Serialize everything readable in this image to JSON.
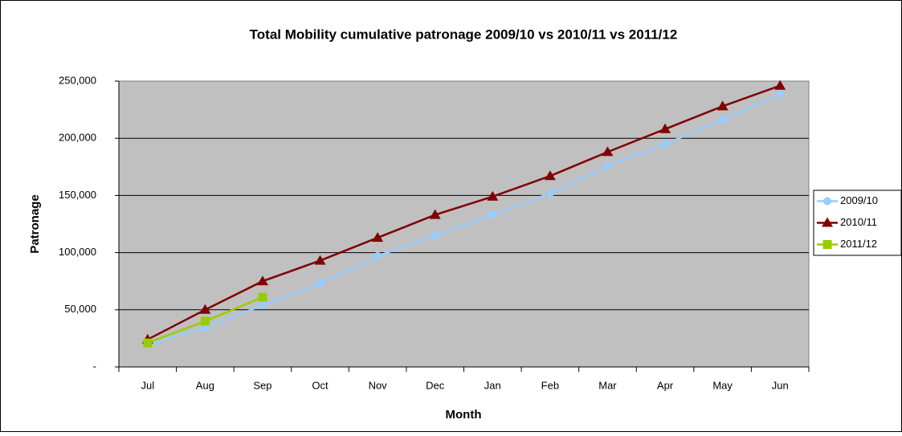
{
  "chart_data": {
    "type": "line",
    "title": "Total Mobility cumulative patronage 2009/10 vs 2010/11 vs 2011/12",
    "x_label": "Month",
    "y_label": "Patronage",
    "categories": [
      "Jul",
      "Aug",
      "Sep",
      "Oct",
      "Nov",
      "Dec",
      "Jan",
      "Feb",
      "Mar",
      "Apr",
      "May",
      "Jun"
    ],
    "series": [
      {
        "name": "2009/10",
        "color": "#99ccff",
        "marker": "circle",
        "values": [
          20000,
          34000,
          54000,
          73000,
          97000,
          115000,
          133000,
          152000,
          176000,
          195000,
          216000,
          239000
        ]
      },
      {
        "name": "2010/11",
        "color": "#800000",
        "marker": "triangle",
        "values": [
          24000,
          50000,
          75000,
          93000,
          113000,
          133000,
          149000,
          167000,
          188000,
          208000,
          228000,
          246000
        ]
      },
      {
        "name": "2011/12",
        "color": "#99cc00",
        "marker": "square",
        "values": [
          21000,
          40000,
          61000,
          null,
          null,
          null,
          null,
          null,
          null,
          null,
          null,
          null
        ]
      }
    ],
    "ylim": [
      0,
      250000
    ],
    "yticks": [
      {
        "value": 0,
        "label": "-"
      },
      {
        "value": 50000,
        "label": "50,000"
      },
      {
        "value": 100000,
        "label": "100,000"
      },
      {
        "value": 150000,
        "label": "150,000"
      },
      {
        "value": 200000,
        "label": "200,000"
      },
      {
        "value": 250000,
        "label": "250,000"
      }
    ],
    "grid": true,
    "legend": "right",
    "plot_background": "#c0c0c0"
  }
}
